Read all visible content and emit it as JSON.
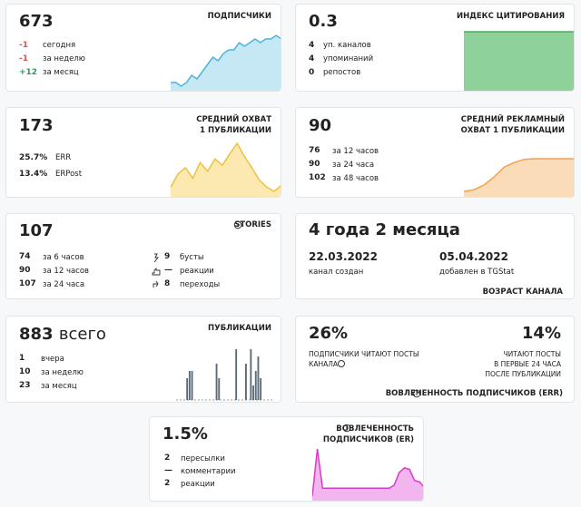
{
  "cards": [
    {
      "value": "673",
      "title": [
        "ПОДПИСЧИКИ"
      ],
      "rows": [
        [
          "-1",
          "сегодня"
        ],
        [
          "-1",
          "за неделю"
        ],
        [
          "+12",
          "за месяц"
        ]
      ],
      "sparkline": {
        "type": "area",
        "color": "#4fb3d9",
        "fill": "#c6e8f5",
        "values": [
          661,
          661,
          660,
          661,
          663,
          662,
          664,
          666,
          668,
          667,
          669,
          670,
          670,
          672,
          671,
          672,
          673,
          672,
          673,
          673,
          674,
          673
        ]
      }
    },
    {
      "value": "0.3",
      "title": [
        "ИНДЕКС ЦИТИРОВАНИЯ"
      ],
      "rows": [
        [
          "4",
          "уп. каналов"
        ],
        [
          "4",
          "упоминаний"
        ],
        [
          "0",
          "репостов"
        ]
      ],
      "sparkline": {
        "type": "area",
        "color": "#4fae5f",
        "fill": "#8fd19b",
        "values": [
          0.3,
          0.3,
          0.3,
          0.3,
          0.3,
          0.3
        ]
      }
    },
    {
      "value": "173",
      "title": [
        "СРЕДНИЙ ОХВАТ",
        "1 ПУБЛИКАЦИИ"
      ],
      "rows": [
        [
          "25.7%",
          "ERR"
        ],
        [
          "13.4%",
          "ERPost"
        ]
      ],
      "sparkline": {
        "type": "area",
        "color": "#f0c040",
        "fill": "#fbe9b0",
        "values": [
          150,
          165,
          172,
          160,
          178,
          168,
          182,
          175,
          188,
          200,
          185,
          172,
          158,
          150,
          145,
          152
        ]
      }
    },
    {
      "value": "90",
      "title": [
        "СРЕДНИЙ РЕКЛАМНЫЙ",
        "ОХВАТ 1 ПУБЛИКАЦИИ"
      ],
      "rows": [
        [
          "76",
          "за 12 часов"
        ],
        [
          "90",
          "за 24 часа"
        ],
        [
          "102",
          "за 48 часов"
        ]
      ],
      "sparkline": {
        "type": "area",
        "color": "#f0a050",
        "fill": "#fbdcb8",
        "values": [
          0,
          5,
          20,
          45,
          76,
          90,
          100,
          102,
          102,
          102,
          102,
          102
        ]
      }
    },
    {
      "value": "107",
      "title": [
        "STORIES"
      ],
      "rows": [
        [
          "74",
          "за 6 часов"
        ],
        [
          "90",
          "за 12 часов"
        ],
        [
          "107",
          "за 24 часа"
        ]
      ],
      "rows2": [
        [
          "9",
          "бусты"
        ],
        [
          "—",
          "реакции"
        ],
        [
          "8",
          "переходы"
        ]
      ]
    },
    {
      "value": "4 года 2 месяца",
      "dates": [
        [
          "22.03.2022",
          "канал создан"
        ],
        [
          "05.04.2022",
          "добавлен в TGStat"
        ]
      ],
      "footer": "ВОЗРАСТ КАНАЛА"
    },
    {
      "value": "883",
      "suffix": "всего",
      "title": [
        "ПУБЛИКАЦИИ"
      ],
      "rows": [
        [
          "1",
          "вчера"
        ],
        [
          "10",
          "за неделю"
        ],
        [
          "23",
          "за месяц"
        ]
      ],
      "sparkline": {
        "type": "bar",
        "color": "#5d6b78",
        "values": [
          0,
          0,
          0,
          0,
          3,
          4,
          4,
          0,
          0,
          0,
          0,
          0,
          0,
          0,
          0,
          0,
          5,
          3,
          0,
          0,
          0,
          0,
          0,
          0,
          7,
          0,
          0,
          0,
          5,
          0,
          7,
          2,
          4,
          6,
          3,
          0,
          0,
          0,
          0,
          0
        ]
      }
    },
    {
      "value": "26%",
      "title": [
        "ПОДПИСЧИКИ ЧИТАЮТ ПОСТЫ",
        "КАНАЛА"
      ],
      "value2": "14%",
      "title2": [
        "ЧИТАЮТ ПОСТЫ",
        "В ПЕРВЫЕ 24 ЧАСА",
        "ПОСЛЕ ПУБЛИКАЦИИ"
      ],
      "footer": "ВОВЛЕЧЕННОСТЬ ПОДПИСЧИКОВ (ERR)"
    },
    {
      "value": "1.5%",
      "title": [
        "ВОВЛЕЧЕННОСТЬ",
        "ПОДПИСЧИКОВ (ER)"
      ],
      "rows": [
        [
          "2",
          "пересылки"
        ],
        [
          "—",
          "комментарии"
        ],
        [
          "2",
          "реакции"
        ]
      ],
      "sparkline": {
        "type": "area",
        "color": "#d63cc8",
        "fill": "#f2b5ee",
        "values": [
          0.5,
          3.5,
          1,
          1,
          1,
          1,
          1,
          1,
          1,
          1,
          1,
          1,
          1,
          1,
          1,
          1,
          1.2,
          2,
          2.3,
          2.2,
          1.5,
          1.4,
          1
        ]
      }
    }
  ]
}
